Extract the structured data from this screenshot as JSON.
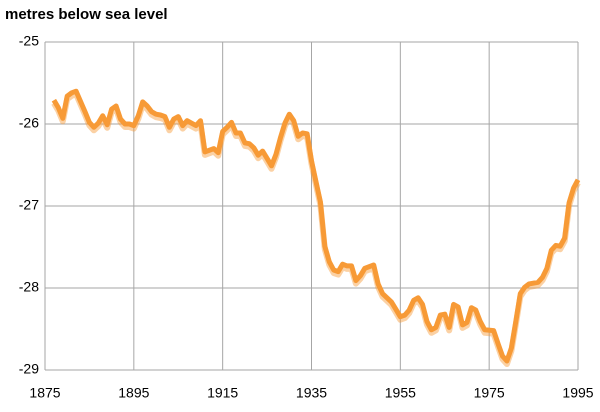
{
  "chart_data": {
    "type": "line",
    "title": "metres below sea level",
    "x": [
      1877,
      1878,
      1879,
      1880,
      1881,
      1882,
      1884,
      1885,
      1886,
      1887,
      1888,
      1889,
      1890,
      1891,
      1892,
      1893,
      1894,
      1895,
      1896,
      1897,
      1898,
      1899,
      1900,
      1901,
      1902,
      1903,
      1904,
      1905,
      1906,
      1907,
      1908,
      1909,
      1910,
      1911,
      1913,
      1914,
      1915,
      1916,
      1917,
      1918,
      1919,
      1920,
      1921,
      1922,
      1923,
      1924,
      1925,
      1926,
      1927,
      1928,
      1929,
      1930,
      1931,
      1932,
      1933,
      1934,
      1935,
      1936,
      1937,
      1938,
      1939,
      1940,
      1941,
      1942,
      1943,
      1944,
      1945,
      1946,
      1947,
      1949,
      1950,
      1951,
      1952,
      1953,
      1954,
      1955,
      1956,
      1957,
      1958,
      1959,
      1960,
      1961,
      1962,
      1963,
      1964,
      1965,
      1966,
      1967,
      1968,
      1969,
      1970,
      1971,
      1972,
      1973,
      1974,
      1976,
      1977,
      1978,
      1979,
      1980,
      1981,
      1982,
      1983,
      1984,
      1986,
      1987,
      1988,
      1989,
      1990,
      1991,
      1992,
      1993,
      1994,
      1995
    ],
    "values": [
      -25.71,
      -25.8,
      -25.93,
      -25.66,
      -25.62,
      -25.6,
      -25.85,
      -25.98,
      -26.04,
      -25.99,
      -25.9,
      -26.01,
      -25.82,
      -25.78,
      -25.94,
      -26.0,
      -26.0,
      -26.02,
      -25.9,
      -25.73,
      -25.78,
      -25.85,
      -25.88,
      -25.89,
      -25.91,
      -26.04,
      -25.94,
      -25.91,
      -26.02,
      -25.96,
      -25.99,
      -26.02,
      -25.96,
      -26.34,
      -26.3,
      -26.35,
      -26.09,
      -26.04,
      -25.98,
      -26.11,
      -26.11,
      -26.23,
      -26.24,
      -26.29,
      -26.38,
      -26.33,
      -26.42,
      -26.51,
      -26.37,
      -26.17,
      -25.99,
      -25.88,
      -25.96,
      -26.15,
      -26.11,
      -26.12,
      -26.45,
      -26.7,
      -26.95,
      -27.49,
      -27.68,
      -27.78,
      -27.8,
      -27.71,
      -27.73,
      -27.73,
      -27.91,
      -27.85,
      -27.76,
      -27.72,
      -27.95,
      -28.07,
      -28.12,
      -28.17,
      -28.26,
      -28.35,
      -28.33,
      -28.27,
      -28.15,
      -28.12,
      -28.2,
      -28.41,
      -28.51,
      -28.48,
      -28.33,
      -28.32,
      -28.48,
      -28.2,
      -28.23,
      -28.45,
      -28.42,
      -28.24,
      -28.27,
      -28.41,
      -28.51,
      -28.52,
      -28.68,
      -28.83,
      -28.89,
      -28.73,
      -28.41,
      -28.07,
      -27.99,
      -27.95,
      -27.93,
      -27.87,
      -27.76,
      -27.54,
      -27.48,
      -27.49,
      -27.39,
      -26.96,
      -26.78,
      -26.68
    ],
    "color": "#f79a36",
    "xlim": [
      1875,
      1995
    ],
    "xticks": [
      1875,
      1895,
      1915,
      1935,
      1955,
      1975,
      1995
    ],
    "ylim": [
      -29,
      -25
    ],
    "yticks": [
      -25,
      -26,
      -27,
      -28,
      -29
    ],
    "grid": true
  }
}
